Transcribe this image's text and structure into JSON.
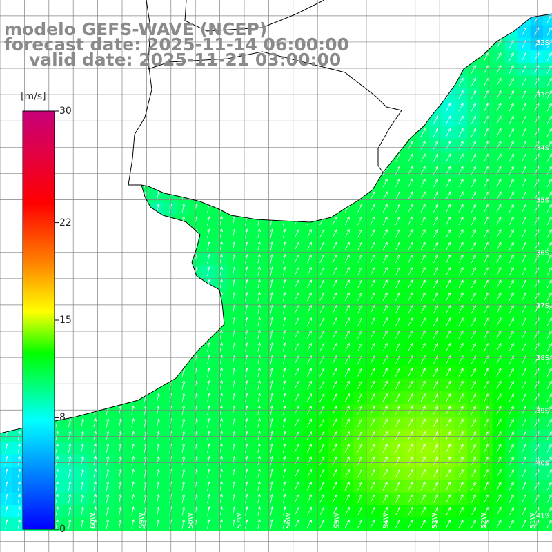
{
  "title": {
    "model": "modelo GEFS-WAVE (NCEP)",
    "forecast": "forecast date: 2025-11-14 06:00:00",
    "valid": "valid date: 2025-11-21 03:00:00"
  },
  "colorbar": {
    "unit": "[m/s]",
    "min": 0,
    "max": 30,
    "ticks": [
      {
        "value": 30,
        "label": "30"
      },
      {
        "value": 22,
        "label": "22"
      },
      {
        "value": 15,
        "label": "15"
      },
      {
        "value": 8,
        "label": "8"
      },
      {
        "value": 0,
        "label": "0"
      }
    ],
    "colors": [
      "#0000ff",
      "#00ffff",
      "#00ff00",
      "#ffff00",
      "#ff8000",
      "#ff0000",
      "#c8007a"
    ]
  },
  "map_data": {
    "type": "wind-field",
    "field": "wind speed",
    "lon_range": [
      -62,
      -50.7
    ],
    "lat_range": [
      -41.7,
      -31.2
    ],
    "lat_labels": [
      "32S",
      "33S",
      "34S",
      "35S",
      "36S",
      "37S",
      "38S",
      "39S",
      "40S",
      "41S"
    ],
    "lon_labels": [
      "60W",
      "59W",
      "58W",
      "57W",
      "56W",
      "55W",
      "54W",
      "53W",
      "52W",
      "51W"
    ],
    "land_color": "#ffffff",
    "arrow_color": "#ffffff",
    "coast_color": "#000000",
    "grid_color": "#808080",
    "prevailing_direction": "from south-west, blowing towards north-east"
  }
}
